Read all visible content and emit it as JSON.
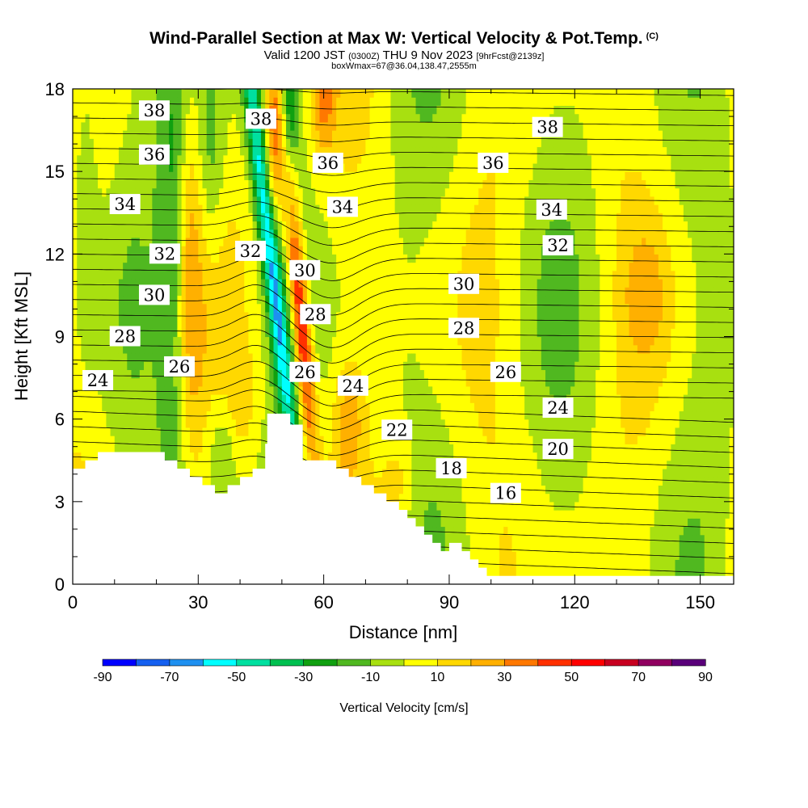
{
  "chart_data": {
    "type": "heatmap",
    "title": "Wind-Parallel Section at Max W: Vertical Velocity & Pot.Temp.",
    "title_mark": "(C)",
    "subtitle_main": "Valid 1200 JST",
    "subtitle_utc": "(0300Z)",
    "subtitle_date": "THU 9 Nov 2023",
    "subtitle_fcst": "[9hrFcst@2139z]",
    "subtitle2": "boxWmax=67@36.04,138.47,2555m",
    "xlabel": "Distance [nm]",
    "ylabel": "Height [Kft MSL]",
    "xlim": [
      0,
      158
    ],
    "ylim": [
      0,
      18
    ],
    "xticks": [
      "0",
      "30",
      "60",
      "90",
      "120",
      "150"
    ],
    "yticks": [
      "0",
      "3",
      "6",
      "9",
      "12",
      "15",
      "18"
    ],
    "colorbar": {
      "label": "Vertical Velocity [cm/s]",
      "tick_labels": [
        "-90",
        "-70",
        "-50",
        "-30",
        "-10",
        "10",
        "30",
        "50",
        "70",
        "90"
      ],
      "colors": [
        "#0000ff",
        "#1560f0",
        "#1e90f0",
        "#00ffff",
        "#00e0a0",
        "#00c050",
        "#10a010",
        "#50b820",
        "#a8e010",
        "#ffff00",
        "#ffd800",
        "#ffb000",
        "#ff7800",
        "#ff3000",
        "#ff0000",
        "#c80020",
        "#900060",
        "#5a007a"
      ]
    },
    "terrain_kft": [
      [
        0,
        4.2
      ],
      [
        3,
        4.2
      ],
      [
        3,
        4.5
      ],
      [
        6,
        4.5
      ],
      [
        6,
        4.8
      ],
      [
        22,
        4.8
      ],
      [
        22,
        4.5
      ],
      [
        25,
        4.5
      ],
      [
        25,
        4.2
      ],
      [
        28,
        4.2
      ],
      [
        28,
        3.9
      ],
      [
        31,
        3.9
      ],
      [
        31,
        3.6
      ],
      [
        34,
        3.6
      ],
      [
        34,
        3.3
      ],
      [
        37,
        3.3
      ],
      [
        37,
        3.6
      ],
      [
        40,
        3.6
      ],
      [
        40,
        3.9
      ],
      [
        43,
        3.9
      ],
      [
        43,
        4.2
      ],
      [
        46,
        4.2
      ],
      [
        46,
        5.1
      ],
      [
        46.5,
        5.1
      ],
      [
        46.5,
        6.2
      ],
      [
        52,
        6.2
      ],
      [
        52,
        5.8
      ],
      [
        55,
        5.8
      ],
      [
        55,
        4.5
      ],
      [
        63,
        4.5
      ],
      [
        63,
        4.2
      ],
      [
        66,
        4.2
      ],
      [
        66,
        3.9
      ],
      [
        69,
        3.9
      ],
      [
        69,
        3.6
      ],
      [
        72,
        3.6
      ],
      [
        72,
        3.3
      ],
      [
        75,
        3.3
      ],
      [
        75,
        3.0
      ],
      [
        78,
        3.0
      ],
      [
        78,
        2.7
      ],
      [
        80,
        2.7
      ],
      [
        80,
        2.4
      ],
      [
        82,
        2.4
      ],
      [
        82,
        2.1
      ],
      [
        84,
        2.1
      ],
      [
        84,
        1.8
      ],
      [
        86,
        1.8
      ],
      [
        86,
        1.5
      ],
      [
        88,
        1.5
      ],
      [
        88,
        1.2
      ],
      [
        90,
        1.2
      ],
      [
        90,
        1.5
      ],
      [
        93,
        1.5
      ],
      [
        93,
        1.2
      ],
      [
        95,
        1.2
      ],
      [
        95,
        0.9
      ],
      [
        97,
        0.9
      ],
      [
        97,
        0.6
      ],
      [
        99,
        0.6
      ],
      [
        99,
        0.3
      ],
      [
        158,
        0.3
      ],
      [
        158,
        0
      ],
      [
        0,
        0
      ]
    ],
    "isentrope_labels": [
      {
        "v": "38",
        "x": 19.5,
        "y": 17.2
      },
      {
        "v": "38",
        "x": 45,
        "y": 16.9
      },
      {
        "v": "38",
        "x": 113.5,
        "y": 16.6
      },
      {
        "v": "36",
        "x": 19.5,
        "y": 15.6
      },
      {
        "v": "36",
        "x": 61,
        "y": 15.3
      },
      {
        "v": "36",
        "x": 100.5,
        "y": 15.3
      },
      {
        "v": "34",
        "x": 12.5,
        "y": 13.8
      },
      {
        "v": "34",
        "x": 64.5,
        "y": 13.7
      },
      {
        "v": "34",
        "x": 114.5,
        "y": 13.6
      },
      {
        "v": "32",
        "x": 22,
        "y": 12.0
      },
      {
        "v": "32",
        "x": 42.5,
        "y": 12.1
      },
      {
        "v": "32",
        "x": 116,
        "y": 12.3
      },
      {
        "v": "30",
        "x": 19.5,
        "y": 10.5
      },
      {
        "v": "30",
        "x": 55.5,
        "y": 11.4
      },
      {
        "v": "30",
        "x": 93.5,
        "y": 10.9
      },
      {
        "v": "28",
        "x": 12.5,
        "y": 9.0
      },
      {
        "v": "28",
        "x": 58,
        "y": 9.8
      },
      {
        "v": "28",
        "x": 93.5,
        "y": 9.3
      },
      {
        "v": "26",
        "x": 25.5,
        "y": 7.9
      },
      {
        "v": "26",
        "x": 55.5,
        "y": 7.7
      },
      {
        "v": "26",
        "x": 103.5,
        "y": 7.7
      },
      {
        "v": "24",
        "x": 6,
        "y": 7.4
      },
      {
        "v": "24",
        "x": 67,
        "y": 7.2
      },
      {
        "v": "24",
        "x": 116,
        "y": 6.4
      },
      {
        "v": "22",
        "x": 77.5,
        "y": 5.6
      },
      {
        "v": "20",
        "x": 116,
        "y": 4.9
      },
      {
        "v": "18",
        "x": 90.5,
        "y": 4.2
      },
      {
        "v": "16",
        "x": 103.5,
        "y": 3.3
      }
    ]
  }
}
